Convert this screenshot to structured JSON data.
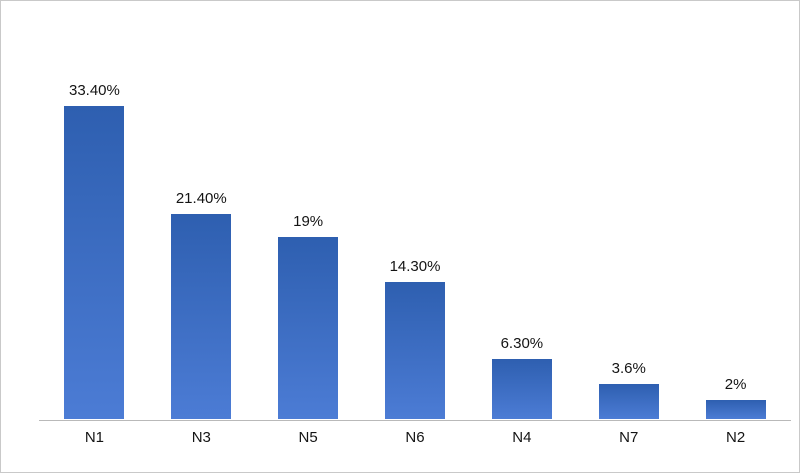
{
  "chart_data": {
    "type": "bar",
    "categories": [
      "N1",
      "N3",
      "N5",
      "N6",
      "N4",
      "N7",
      "N2"
    ],
    "values": [
      33.4,
      21.4,
      19,
      14.3,
      6.3,
      3.6,
      2
    ],
    "value_labels": [
      "33.40%",
      "21.40%",
      "19%",
      "14.30%",
      "6.30%",
      "3.6%",
      "2%"
    ],
    "title": "",
    "xlabel": "",
    "ylabel": "",
    "ylim": [
      0,
      35
    ],
    "grid": false,
    "legend": false,
    "bar_color_top": "#2e5fb0",
    "bar_color_bottom": "#4c7cd5",
    "axis_line_color": "#b9b9b9",
    "background_color": "#ffffff",
    "border_color": "#c9c9c9"
  }
}
